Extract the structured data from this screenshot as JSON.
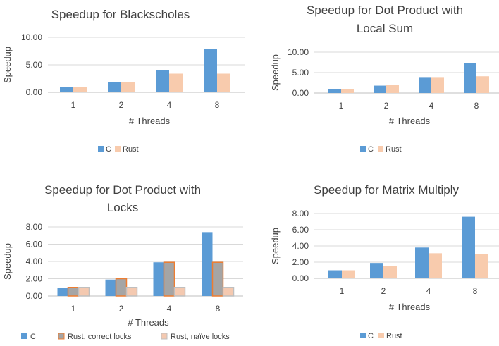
{
  "colors": {
    "c": "#5b9bd5",
    "rust": "#f8cbad",
    "rust_correct_fill": "#a5a5a5",
    "rust_correct_stroke": "#ed7d31",
    "rust_naive": "#f4c9b0",
    "grid": "#d9d9d9",
    "axis": "#bfbfbf",
    "text": "#404040"
  },
  "chart_data": [
    {
      "type": "bar",
      "title": [
        "Speedup for Blackscholes"
      ],
      "xlabel": "# Threads",
      "ylabel": "Speedup",
      "categories": [
        "1",
        "2",
        "4",
        "8"
      ],
      "ylim": [
        0,
        10
      ],
      "yticks": [
        "0.00",
        "5.00",
        "10.00"
      ],
      "grid": true,
      "legend": "bottom",
      "series": [
        {
          "name": "C",
          "values": [
            1.0,
            1.9,
            4.0,
            7.9
          ]
        },
        {
          "name": "Rust",
          "values": [
            1.0,
            1.8,
            3.4,
            3.4
          ]
        }
      ]
    },
    {
      "type": "bar",
      "title": [
        "Speedup for Dot Product with",
        "Local Sum"
      ],
      "xlabel": "# Threads",
      "ylabel": "Speedup",
      "categories": [
        "1",
        "2",
        "4",
        "8"
      ],
      "ylim": [
        0,
        10
      ],
      "yticks": [
        "0.00",
        "5.00",
        "10.00"
      ],
      "grid": true,
      "legend": "bottom",
      "series": [
        {
          "name": "C",
          "values": [
            1.0,
            1.8,
            3.9,
            7.4
          ]
        },
        {
          "name": "Rust",
          "values": [
            1.0,
            2.0,
            3.9,
            4.1
          ]
        }
      ]
    },
    {
      "type": "bar",
      "title": [
        "Speedup for Dot Product with",
        "Locks"
      ],
      "xlabel": "# Threads",
      "ylabel": "Speedup",
      "categories": [
        "1",
        "2",
        "4",
        "8"
      ],
      "ylim": [
        0,
        8
      ],
      "yticks": [
        "0.00",
        "2.00",
        "4.00",
        "6.00",
        "8.00"
      ],
      "grid": true,
      "legend": "bottom",
      "series": [
        {
          "name": "C",
          "values": [
            0.9,
            1.9,
            3.9,
            7.4
          ]
        },
        {
          "name": "Rust, correct locks",
          "values": [
            1.0,
            2.0,
            3.9,
            3.9
          ]
        },
        {
          "name": "Rust, naïve locks",
          "values": [
            1.0,
            1.0,
            1.0,
            1.0
          ]
        }
      ]
    },
    {
      "type": "bar",
      "title": [
        "Speedup for Matrix Multiply"
      ],
      "xlabel": "# Threads",
      "ylabel": "Speedup",
      "categories": [
        "1",
        "2",
        "4",
        "8"
      ],
      "ylim": [
        0,
        8
      ],
      "yticks": [
        "0.00",
        "2.00",
        "4.00",
        "6.00",
        "8.00"
      ],
      "grid": true,
      "legend": "bottom",
      "series": [
        {
          "name": "C",
          "values": [
            1.0,
            1.9,
            3.8,
            7.6
          ]
        },
        {
          "name": "Rust",
          "values": [
            1.0,
            1.5,
            3.1,
            3.0
          ]
        }
      ]
    }
  ]
}
